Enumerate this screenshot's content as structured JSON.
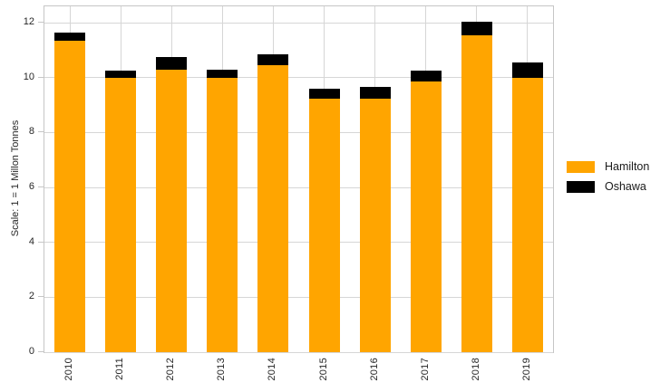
{
  "chart_data": {
    "type": "bar",
    "stacked": true,
    "title": "",
    "xlabel": "",
    "ylabel": "Scale: 1 = 1 Millon Tonnes",
    "categories": [
      "2010",
      "2011",
      "2012",
      "2013",
      "2014",
      "2015",
      "2016",
      "2017",
      "2018",
      "2019"
    ],
    "series": [
      {
        "name": "Hamilton",
        "color": "#FFA500",
        "values": [
          11.35,
          10.0,
          10.3,
          10.0,
          10.45,
          9.25,
          9.25,
          9.85,
          11.55,
          10.0
        ]
      },
      {
        "name": "Oshawa",
        "color": "#000000",
        "values": [
          0.3,
          0.25,
          0.45,
          0.3,
          0.4,
          0.35,
          0.4,
          0.4,
          0.5,
          0.55
        ]
      }
    ],
    "totals": [
      11.65,
      10.25,
      10.75,
      10.3,
      10.85,
      9.6,
      9.65,
      10.25,
      12.05,
      10.55
    ],
    "yticks": [
      0,
      2,
      4,
      6,
      8,
      10,
      12
    ],
    "ylim": [
      0,
      12.6
    ],
    "grid": true,
    "legend_position": "right",
    "colors": {
      "hamilton": "#FFA500",
      "oshawa": "#000000",
      "gridline": "#d6d6d6",
      "spine": "#c6c6c6",
      "tick_text": "#262626"
    }
  }
}
